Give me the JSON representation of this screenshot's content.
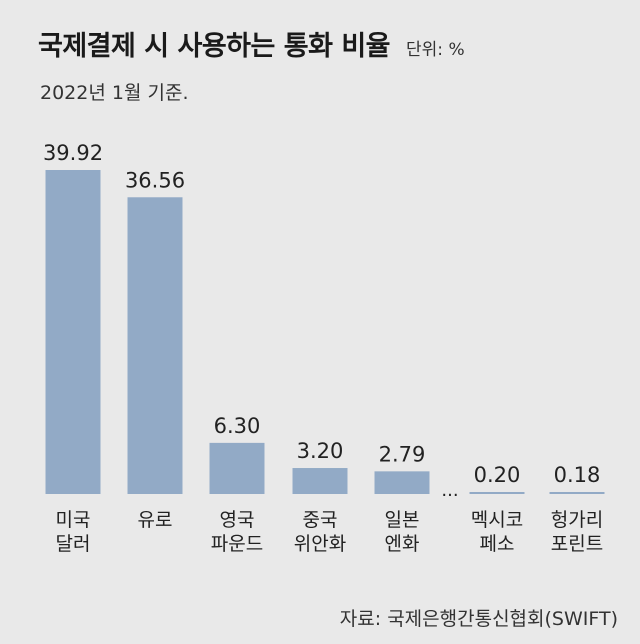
{
  "header": {
    "title": "국제결제 시 사용하는 통화 비율",
    "unit": "단위: %",
    "subtitle": "2022년 1월 기준."
  },
  "footer": {
    "source": "자료: 국제은행간통신협회(SWIFT)"
  },
  "chart_data": {
    "type": "bar",
    "title": "국제결제 시 사용하는 통화 비율",
    "subtitle": "2022년 1월 기준.",
    "ylabel": "",
    "xlabel": "",
    "unit": "%",
    "categories": [
      [
        "미국",
        "달러"
      ],
      [
        "유로"
      ],
      [
        "영국",
        "파운드"
      ],
      [
        "중국",
        "위안화"
      ],
      [
        "일본",
        "엔화"
      ],
      [
        "멕시코",
        "페소"
      ],
      [
        "헝가리",
        "포린트"
      ]
    ],
    "values": [
      39.92,
      36.56,
      6.3,
      3.2,
      2.79,
      0.2,
      0.18
    ],
    "value_labels": [
      "39.92",
      "36.56",
      "6.30",
      "3.20",
      "2.79",
      "0.20",
      "0.18"
    ],
    "gap_marker": "...",
    "ylim": [
      0,
      39.92
    ],
    "grid": false,
    "bar_color": "#92aac6"
  }
}
